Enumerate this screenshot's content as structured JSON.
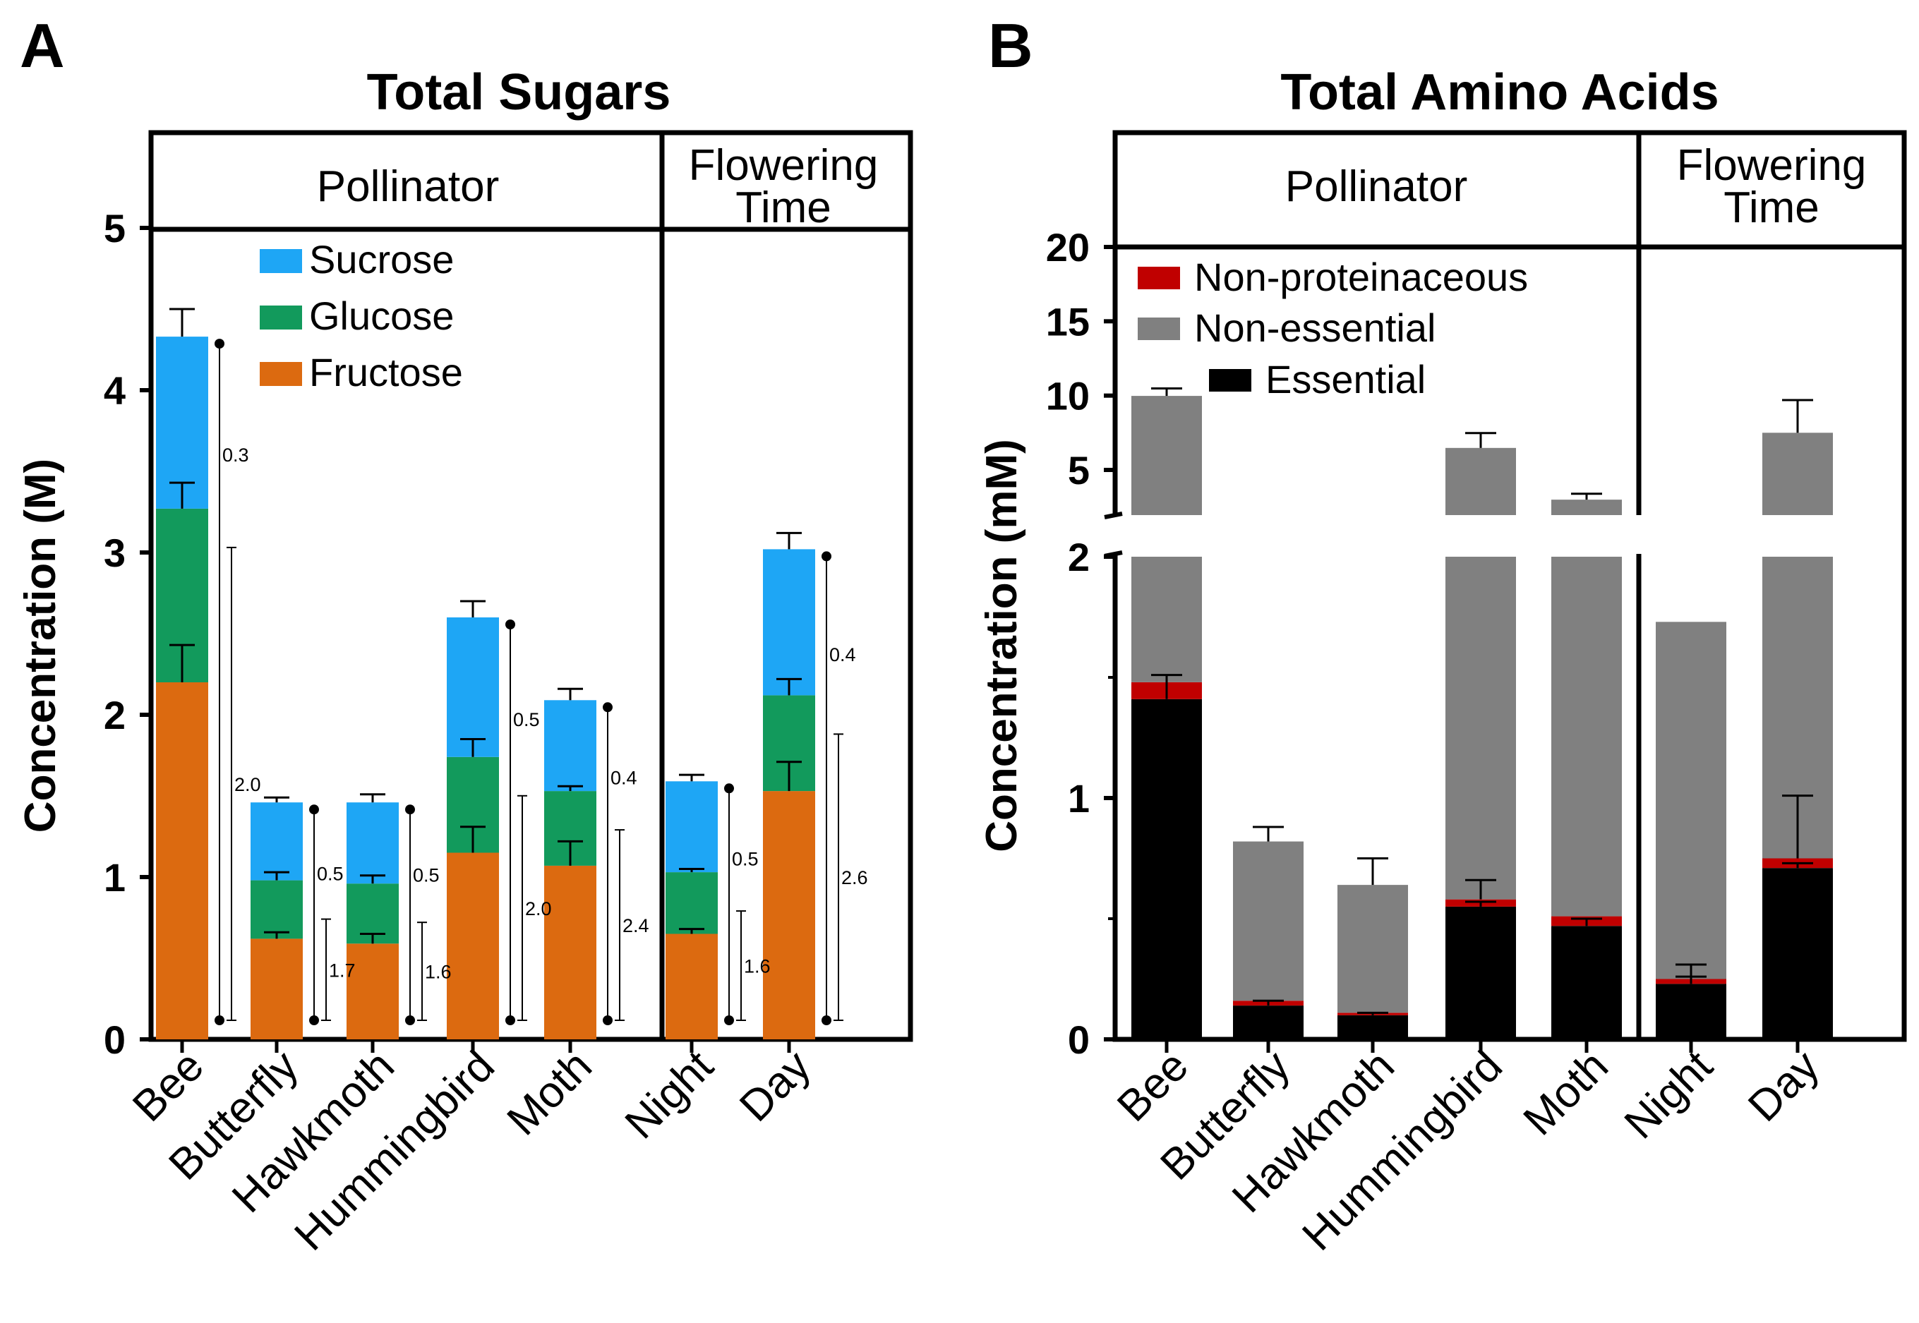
{
  "colors": {
    "sucrose": "#1ea6f5",
    "glucose": "#129a5c",
    "fructose": "#dc6a10",
    "non_proteinaceous": "#c00000",
    "non_essential": "#808080",
    "essential": "#000000"
  },
  "chart_data": [
    {
      "panel": "A",
      "type": "bar",
      "stacked": true,
      "title": "Total Sugars",
      "ylabel": "Concentration (M)",
      "xlabel": "",
      "ylim": [
        0,
        5
      ],
      "yticks": [
        "0",
        "1",
        "2",
        "3",
        "4",
        "5"
      ],
      "group_headers": [
        "Pollinator",
        "Flowering Time"
      ],
      "categories": [
        "Bee",
        "Butterfly",
        "Hawkmoth",
        "Hummingbird",
        "Moth",
        "Night",
        "Day"
      ],
      "legend": [
        "Sucrose",
        "Glucose",
        "Fructose"
      ],
      "series": [
        {
          "name": "Fructose",
          "values": [
            2.2,
            0.62,
            0.59,
            1.15,
            1.07,
            0.65,
            1.53
          ],
          "errors": [
            0.23,
            0.04,
            0.06,
            0.16,
            0.15,
            0.03,
            0.18
          ]
        },
        {
          "name": "Glucose",
          "values": [
            1.07,
            0.36,
            0.37,
            0.59,
            0.46,
            0.38,
            0.59
          ],
          "errors": [
            0.16,
            0.05,
            0.05,
            0.11,
            0.03,
            0.02,
            0.1
          ]
        },
        {
          "name": "Sucrose",
          "values": [
            1.06,
            0.48,
            0.5,
            0.86,
            0.56,
            0.56,
            0.9
          ],
          "errors": [
            0.17,
            0.03,
            0.05,
            0.1,
            0.07,
            0.04,
            0.1
          ]
        }
      ],
      "ratio_labels": [
        {
          "category": "Bee",
          "top": "0.3",
          "bottom": "2.0"
        },
        {
          "category": "Butterfly",
          "top": "0.5",
          "bottom": "1.7"
        },
        {
          "category": "Hawkmoth",
          "top": "0.5",
          "bottom": "1.6"
        },
        {
          "category": "Hummingbird",
          "top": "0.5",
          "bottom": "2.0"
        },
        {
          "category": "Moth",
          "top": "0.4",
          "bottom": "2.4"
        },
        {
          "category": "Night",
          "top": "0.5",
          "bottom": "1.6"
        },
        {
          "category": "Day",
          "top": "0.4",
          "bottom": "2.6"
        }
      ]
    },
    {
      "panel": "B",
      "type": "bar",
      "stacked": true,
      "title": "Total Amino Acids",
      "ylabel": "Concentration (mM)",
      "xlabel": "",
      "ylim": [
        0,
        20
      ],
      "axis_break": [
        2,
        3
      ],
      "yticks_lower": [
        "0",
        "1",
        "2"
      ],
      "yticks_upper": [
        "5",
        "10",
        "15",
        "20"
      ],
      "group_headers": [
        "Pollinator",
        "Flowering Time"
      ],
      "categories": [
        "Bee",
        "Butterfly",
        "Hawkmoth",
        "Hummingbird",
        "Moth",
        "Night",
        "Day"
      ],
      "legend": [
        "Non-proteinaceous",
        "Non-essential",
        "Essential"
      ],
      "series": [
        {
          "name": "Essential",
          "values": [
            1.41,
            0.14,
            0.1,
            0.55,
            0.47,
            0.23,
            0.71
          ],
          "errors": [
            0.1,
            0.02,
            0.01,
            0.02,
            0.03,
            0.03,
            0.02
          ]
        },
        {
          "name": "Non-proteinaceous",
          "values": [
            0.07,
            0.02,
            0.01,
            0.03,
            0.04,
            0.02,
            0.04
          ],
          "errors": [
            0,
            0,
            0,
            0.08,
            0,
            0.06,
            0.26
          ]
        },
        {
          "name": "Non-essential",
          "values": [
            8.5,
            0.66,
            0.53,
            5.9,
            2.49,
            1.48,
            6.75
          ],
          "errors": [
            0.5,
            0.06,
            0.11,
            1.0,
            0.4,
            0,
            2.2
          ]
        }
      ]
    }
  ]
}
